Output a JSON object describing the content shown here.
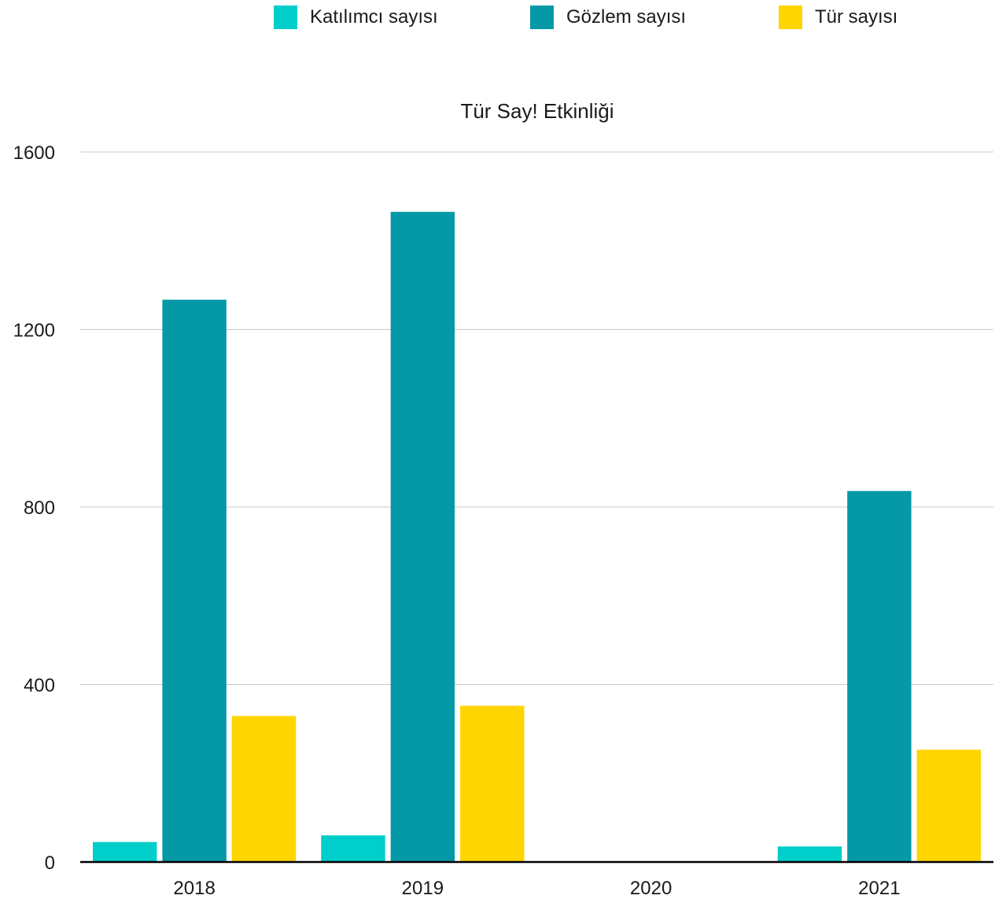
{
  "chart_data": {
    "type": "bar",
    "title": "Tür Say! Etkinliği",
    "categories": [
      "2018",
      "2019",
      "2020",
      "2021"
    ],
    "series": [
      {
        "name": "Katılımcı sayısı",
        "color": "#00CECB",
        "values": [
          45,
          60,
          0,
          35
        ]
      },
      {
        "name": "Gözlem sayısı",
        "color": "#0599A7",
        "values": [
          1267,
          1465,
          0,
          836
        ]
      },
      {
        "name": "Tür sayısı",
        "color": "#FFD500",
        "values": [
          329,
          352,
          0,
          253
        ]
      }
    ],
    "xlabel": "",
    "ylabel": "",
    "ylim": [
      0,
      1600
    ],
    "yticks": [
      "0",
      "400",
      "800",
      "1200",
      "1600"
    ],
    "grid": true,
    "legend_position": "top"
  }
}
